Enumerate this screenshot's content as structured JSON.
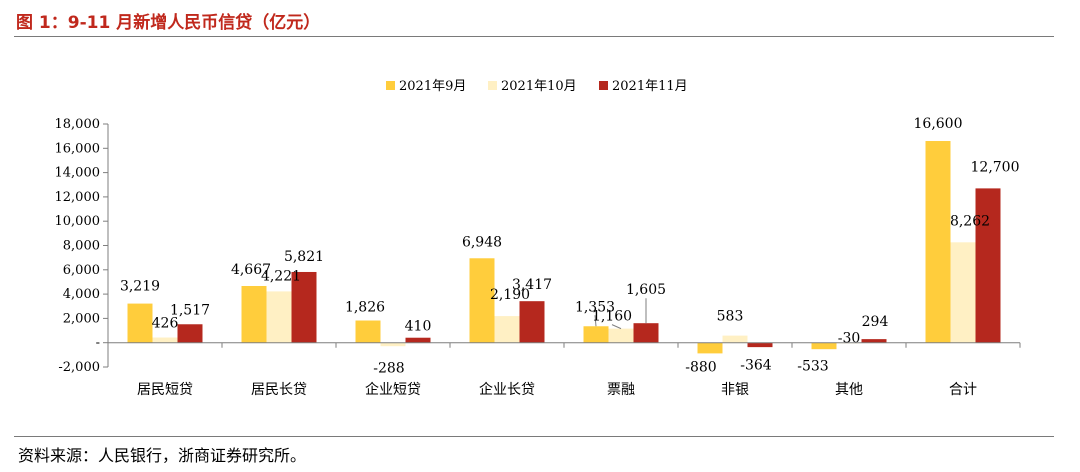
{
  "figure": {
    "title": "图 1：9-11 月新增人民币信贷（亿元）",
    "source": "资料来源：人民银行，浙商证券研究所。"
  },
  "chart_data": {
    "type": "bar",
    "title": "",
    "xlabel": "",
    "ylabel": "",
    "categories": [
      "居民短贷",
      "居民长贷",
      "企业短贷",
      "企业长贷",
      "票融",
      "非银",
      "其他",
      "合计"
    ],
    "series": [
      {
        "name": "2021年9月",
        "color": "#FFCD3C",
        "values": [
          3219,
          4667,
          1826,
          6948,
          1353,
          -880,
          -533,
          16600
        ],
        "labels": [
          "3,219",
          "4,667",
          "1,826",
          "6,948",
          "1,353",
          "-880",
          "-533",
          "16,600"
        ]
      },
      {
        "name": "2021年10月",
        "color": "#FFF0C4",
        "values": [
          426,
          4221,
          -288,
          2190,
          1160,
          583,
          -30,
          8262
        ],
        "labels": [
          "426",
          "4,221",
          "-288",
          "2,190",
          "1,160",
          "583",
          "-30",
          "8,262"
        ]
      },
      {
        "name": "2021年11月",
        "color": "#B5281E",
        "values": [
          1517,
          5821,
          410,
          3417,
          1605,
          -364,
          294,
          12700
        ],
        "labels": [
          "1,517",
          "5,821",
          "410",
          "3,417",
          "1,605",
          "-364",
          "294",
          "12,700"
        ]
      }
    ],
    "ylim": [
      -2000,
      18000
    ],
    "yticks": [
      -2000,
      0,
      2000,
      4000,
      6000,
      8000,
      10000,
      12000,
      14000,
      16000,
      18000
    ],
    "ytick_labels": [
      "-2,000",
      "-",
      "2,000",
      "4,000",
      "6,000",
      "8,000",
      "10,000",
      "12,000",
      "14,000",
      "16,000",
      "18,000"
    ],
    "grid": false,
    "legend_position": "top-center"
  }
}
